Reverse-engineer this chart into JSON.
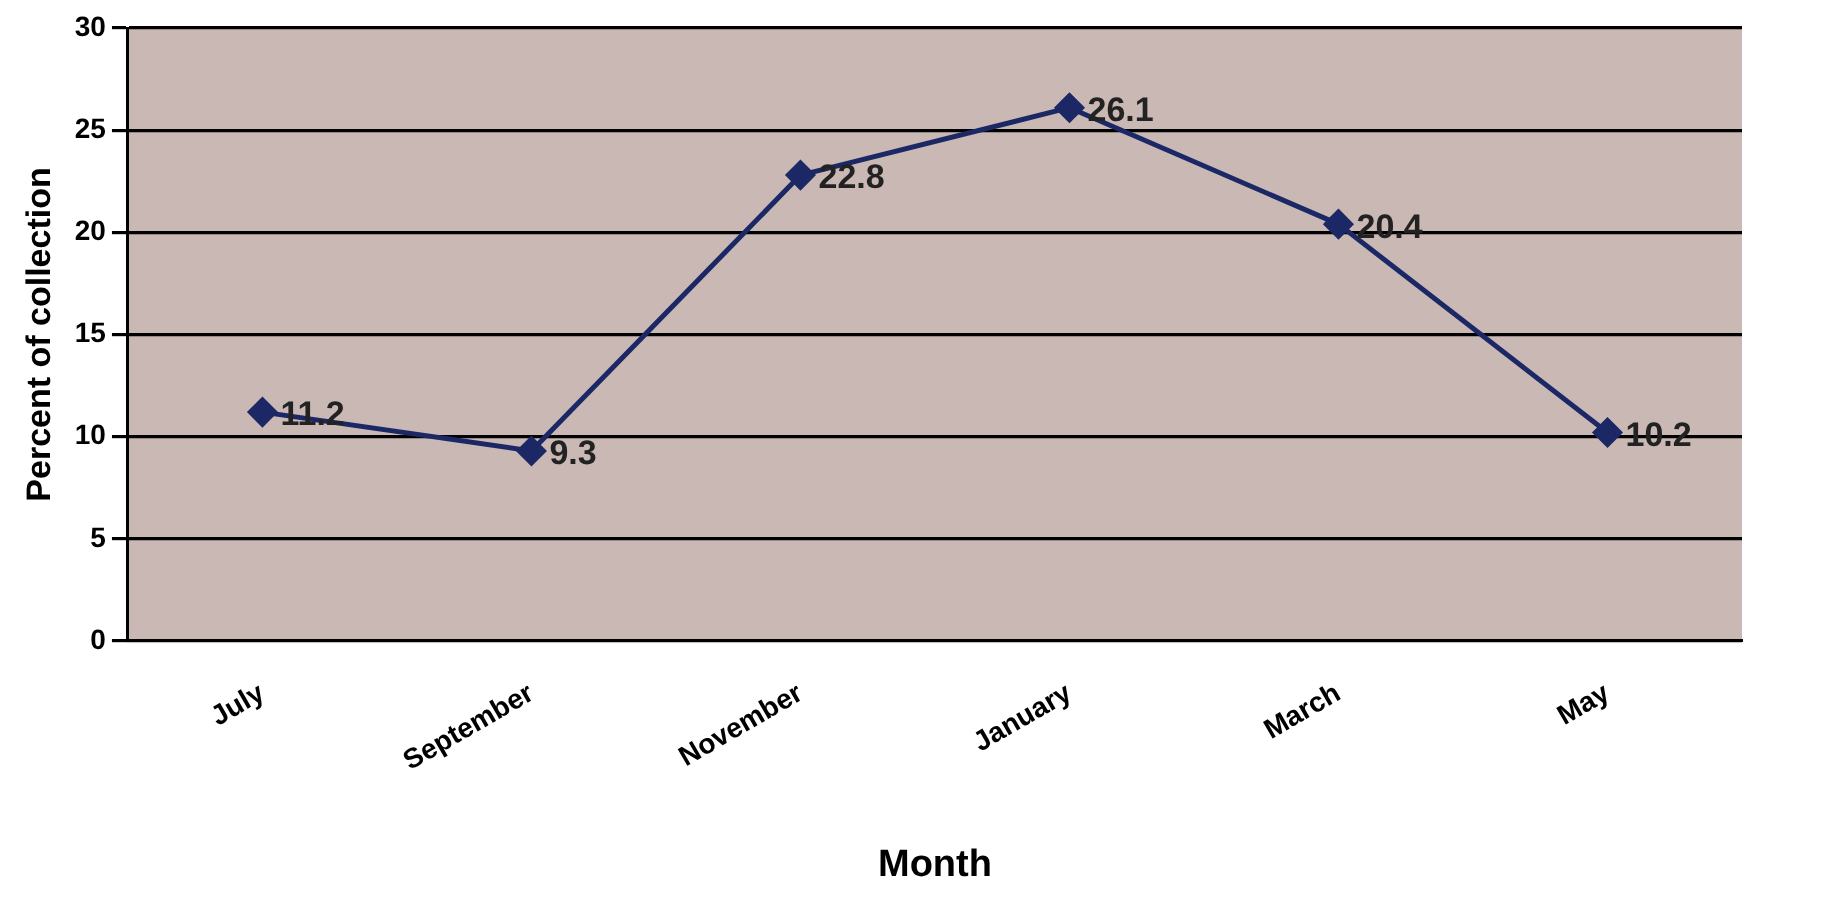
{
  "chart_data": {
    "type": "line",
    "xlabel": "Month",
    "ylabel": "Percent of collection",
    "categories": [
      "July",
      "September",
      "November",
      "January",
      "March",
      "May"
    ],
    "series": [
      {
        "color": "#1c2766",
        "values": [
          11.2,
          9.3,
          22.8,
          26.1,
          20.4,
          10.2
        ]
      }
    ],
    "ylim": [
      0,
      30
    ],
    "yticks": [
      0,
      5,
      10,
      15,
      20,
      25,
      30
    ],
    "grid": "y",
    "legend": false,
    "marker": "diamond",
    "line_style": "solid",
    "data_labels": true
  }
}
